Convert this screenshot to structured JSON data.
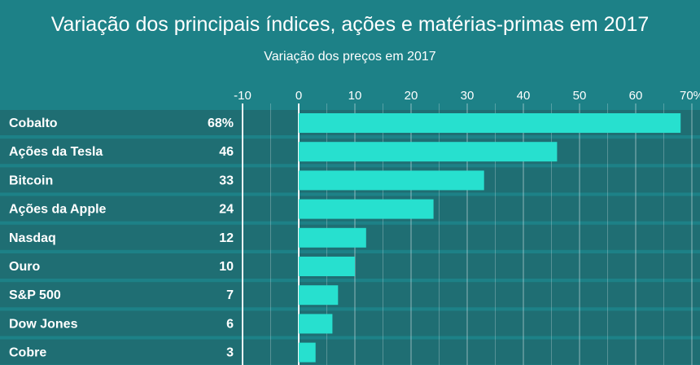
{
  "chart_data": {
    "type": "bar",
    "orientation": "horizontal",
    "title": "Variação dos principais índices, ações e matérias-primas em 2017",
    "subtitle": "Variação dos preços em 2017",
    "categories": [
      "Cobalto",
      "Ações da Tesla",
      "Bitcoin",
      "Ações da Apple",
      "Nasdaq",
      "Ouro",
      "S&P 500",
      "Dow Jones",
      "Cobre"
    ],
    "values": [
      68,
      46,
      33,
      24,
      12,
      10,
      7,
      6,
      3
    ],
    "value_labels": [
      "68%",
      "46",
      "33",
      "24",
      "12",
      "10",
      "7",
      "6",
      "3"
    ],
    "xlim": [
      -10,
      70
    ],
    "x_ticks": [
      "-10",
      "0",
      "10",
      "20",
      "30",
      "40",
      "50",
      "60",
      "70%"
    ],
    "x_tick_values": [
      -10,
      0,
      10,
      20,
      30,
      40,
      50,
      60,
      70
    ],
    "grid": true,
    "axis_position": "top",
    "colors": {
      "background": "#1d8187",
      "row": "#1f6e73",
      "bar": "#27e0cf",
      "grid": "#ffffff"
    }
  }
}
